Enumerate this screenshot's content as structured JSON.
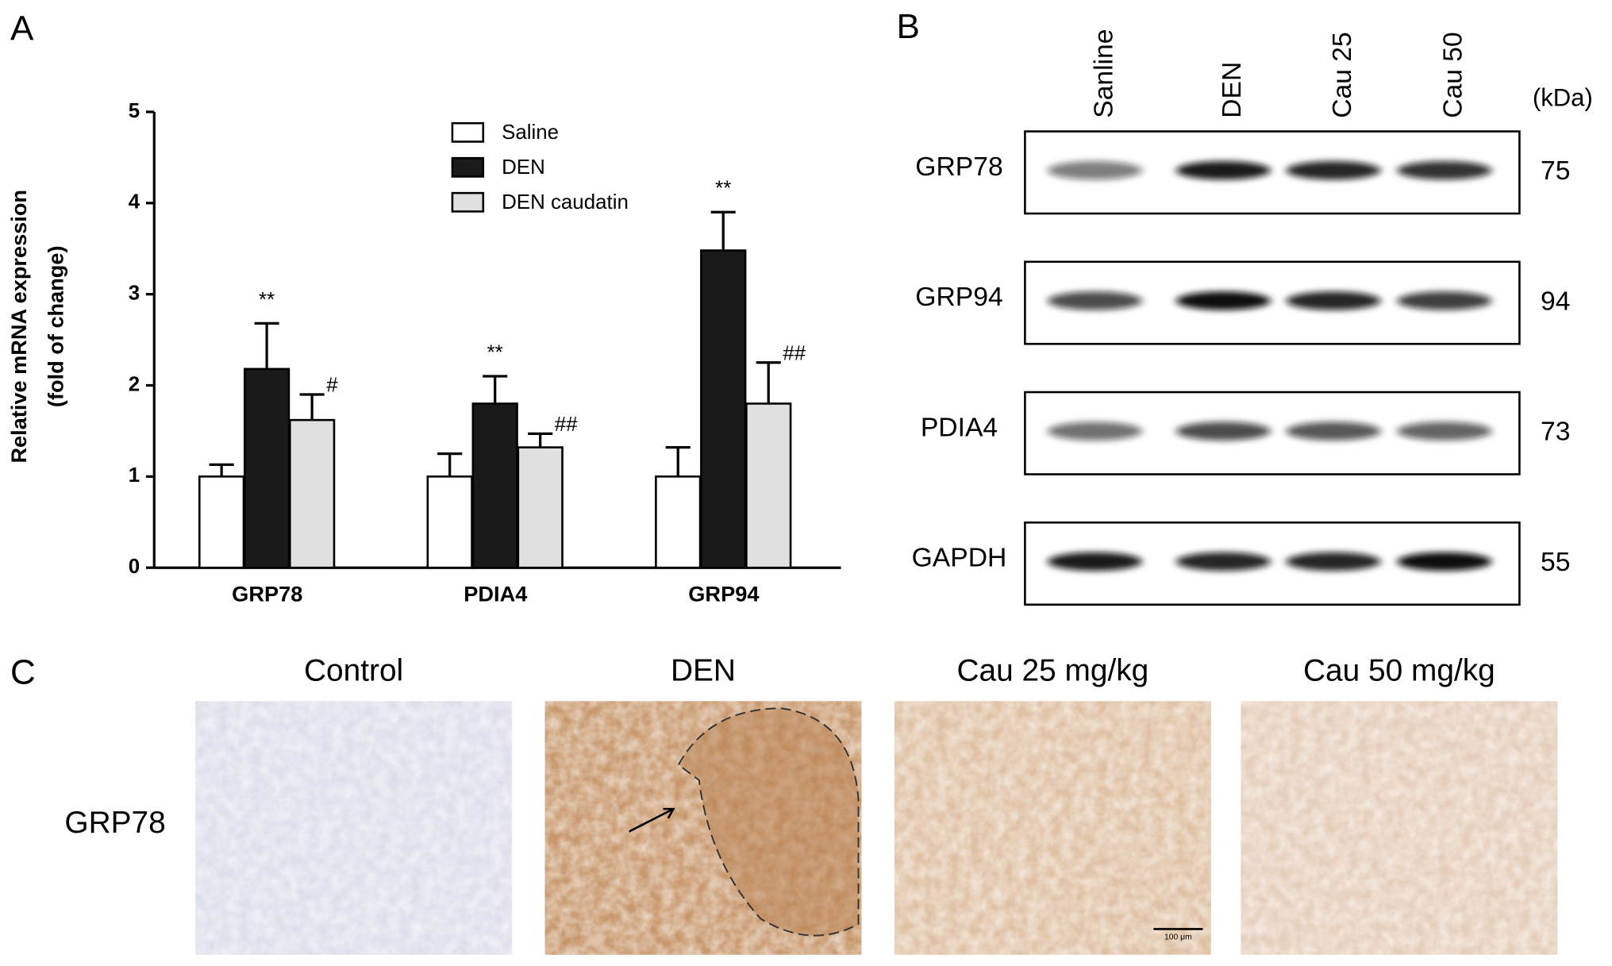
{
  "chart_data": {
    "type": "bar",
    "panel_label": "A",
    "ylabel": [
      "Relative mRNA expression",
      "(fold of change)"
    ],
    "categories": [
      "GRP78",
      "PDIA4",
      "GRP94"
    ],
    "series": [
      {
        "name": "Saline",
        "color": "#ffffff",
        "values": [
          1.0,
          1.0,
          1.0
        ],
        "errors": [
          0.13,
          0.25,
          0.32
        ]
      },
      {
        "name": "DEN",
        "color": "#1a1a1a",
        "values": [
          2.18,
          1.8,
          3.48
        ],
        "errors": [
          0.5,
          0.3,
          0.42
        ],
        "annotations": [
          "**",
          "**",
          "**"
        ]
      },
      {
        "name": "DEN caudatin",
        "color": "#e0e0e0",
        "values": [
          1.62,
          1.32,
          1.8
        ],
        "errors": [
          0.28,
          0.15,
          0.45
        ],
        "annotations": [
          "#",
          "##",
          "##"
        ]
      }
    ],
    "ylim": [
      0,
      5
    ],
    "yticks": [
      0,
      1,
      2,
      3,
      4,
      5
    ],
    "grid": false,
    "legend": "top"
  },
  "blot": {
    "panel_label": "B",
    "lanes": [
      "Sanline",
      "DEN",
      "Cau 25",
      "Cau 50"
    ],
    "unit": "(kDa)",
    "rows": [
      {
        "protein": "GRP78",
        "kda": "75"
      },
      {
        "protein": "GRP94",
        "kda": "94"
      },
      {
        "protein": "PDIA4",
        "kda": "73"
      },
      {
        "protein": "GAPDH",
        "kda": "55"
      }
    ]
  },
  "histology": {
    "panel_label": "C",
    "columns": [
      "Control",
      "DEN",
      "Cau 25 mg/kg",
      "Cau 50 mg/kg"
    ],
    "row_label": "GRP78",
    "scale_bar": "100 μm"
  }
}
